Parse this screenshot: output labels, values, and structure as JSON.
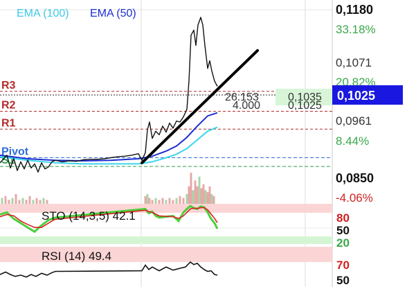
{
  "chart_data": {
    "type": "line",
    "legend": {
      "ema100": "EMA (100)",
      "ema50": "EMA (50)"
    },
    "price_axis": {
      "max_label": "0,1180",
      "max_pct": "33.18%",
      "t1_label": "0,1071",
      "t1_pct": "20.82%",
      "current_label": "0,1025",
      "t2_label": "0,0961",
      "t2_pct": "8.44%",
      "t3_label": "0,0850",
      "t3_pct": "-4.06%"
    },
    "levels": [
      {
        "name": "R3",
        "value": 0.102
      },
      {
        "name": "R2",
        "value": 0.0981
      },
      {
        "name": "R1",
        "value": 0.0946
      },
      {
        "name": "Pivot",
        "value": 0.089
      },
      {
        "name": "S1",
        "value": 0.0873
      }
    ],
    "measure": {
      "top": "26.153",
      "bottom": "4.000",
      "right_top": "0,1035",
      "right_bottom": "0,1025"
    },
    "price_x": [
      0,
      10,
      15,
      20,
      25,
      30,
      35,
      40,
      45,
      50,
      55,
      60,
      65,
      70,
      75,
      80,
      90,
      100,
      110,
      120,
      130,
      140,
      150,
      160,
      170,
      180,
      190,
      200,
      205,
      210,
      213,
      216,
      220,
      225,
      230,
      235,
      240,
      245,
      250,
      255,
      260,
      265,
      270,
      273,
      276,
      280,
      283,
      286,
      290,
      293,
      296,
      300,
      303,
      306,
      310,
      314
    ],
    "price_y": [
      0.088,
      0.0895,
      0.087,
      0.0888,
      0.0865,
      0.0882,
      0.0868,
      0.0885,
      0.087,
      0.0878,
      0.0862,
      0.088,
      0.0868,
      0.0872,
      0.0882,
      0.0885,
      0.0882,
      0.0884,
      0.0883,
      0.0886,
      0.0887,
      0.0887,
      0.0888,
      0.089,
      0.0892,
      0.0893,
      0.0895,
      0.0898,
      0.0885,
      0.09,
      0.0945,
      0.096,
      0.0928,
      0.0942,
      0.0935,
      0.0952,
      0.094,
      0.0958,
      0.0948,
      0.0962,
      0.096,
      0.097,
      0.0985,
      0.104,
      0.113,
      0.114,
      0.111,
      0.115,
      0.1165,
      0.115,
      0.111,
      0.1065,
      0.108,
      0.106,
      0.104,
      0.103
    ],
    "ema50_x": [
      0,
      40,
      80,
      120,
      160,
      200,
      220,
      240,
      255,
      270,
      285,
      300,
      314
    ],
    "ema50_y": [
      0.0895,
      0.0888,
      0.0885,
      0.0884,
      0.0885,
      0.0888,
      0.0893,
      0.0903,
      0.0913,
      0.093,
      0.0952,
      0.0972,
      0.0978
    ],
    "ema100_x": [
      0,
      40,
      80,
      120,
      160,
      200,
      220,
      240,
      255,
      270,
      285,
      300,
      314
    ],
    "ema100_y": [
      0.0892,
      0.0885,
      0.088,
      0.0878,
      0.0878,
      0.0878,
      0.0882,
      0.089,
      0.0897,
      0.0908,
      0.0925,
      0.0942,
      0.095
    ],
    "trendline": {
      "x": [
        205,
        372
      ],
      "y": [
        0.088,
        0.11
      ]
    },
    "volume_x": [
      3,
      8,
      13,
      18,
      23,
      28,
      33,
      38,
      43,
      48,
      53,
      58,
      63,
      68,
      210,
      213,
      216,
      220,
      225,
      230,
      235,
      240,
      245,
      250,
      255,
      260,
      265,
      270,
      273,
      276,
      279,
      282,
      285,
      288,
      291,
      294,
      297,
      300,
      303,
      306,
      309
    ],
    "volume": [
      3,
      4,
      2,
      3,
      5,
      2,
      3,
      2,
      4,
      2,
      3,
      2,
      3,
      2,
      4,
      5,
      3,
      2,
      3,
      2,
      3,
      2,
      3,
      2,
      3,
      4,
      3,
      5,
      9,
      16,
      7,
      12,
      9,
      14,
      8,
      10,
      7,
      6,
      9,
      5,
      4
    ],
    "sto": {
      "label": "STO (14,3,5) 42.1",
      "upper_label": "80",
      "mid_label": "50",
      "lower_label": "20",
      "k_x": [
        0,
        10,
        20,
        30,
        40,
        50,
        60,
        70,
        75,
        80,
        210,
        215,
        220,
        225,
        230,
        240,
        250,
        258,
        265,
        270,
        275,
        280,
        285,
        290,
        295,
        300,
        305,
        310,
        314
      ],
      "k": [
        75,
        80,
        65,
        55,
        45,
        35,
        50,
        62,
        65,
        68,
        88,
        78,
        82,
        72,
        68,
        70,
        72,
        60,
        80,
        88,
        95,
        90,
        88,
        94,
        92,
        80,
        65,
        55,
        42
      ],
      "d_x": [
        0,
        10,
        20,
        30,
        40,
        50,
        60,
        70,
        75,
        80,
        210,
        215,
        220,
        225,
        230,
        240,
        250,
        258,
        265,
        270,
        275,
        280,
        285,
        290,
        295,
        300,
        305,
        310,
        314
      ],
      "d": [
        70,
        75,
        72,
        60,
        52,
        45,
        45,
        55,
        60,
        64,
        85,
        82,
        80,
        76,
        72,
        71,
        70,
        66,
        72,
        80,
        88,
        90,
        89,
        91,
        91,
        86,
        76,
        66,
        56
      ]
    },
    "rsi": {
      "label": "RSI (14) 49.4",
      "upper_label": "70",
      "lower_label": "50",
      "x": [
        0,
        8,
        15,
        22,
        30,
        38,
        45,
        52,
        60,
        68,
        75,
        80,
        205,
        210,
        215,
        220,
        230,
        240,
        250,
        260,
        268,
        275,
        280,
        285,
        290,
        295,
        300,
        305,
        310,
        314
      ],
      "values": [
        50,
        54,
        50,
        47,
        49,
        46,
        50,
        47,
        52,
        49,
        53,
        55,
        56,
        65,
        58,
        62,
        56,
        62,
        57,
        60,
        62,
        70,
        66,
        68,
        62,
        58,
        55,
        56,
        50,
        49
      ]
    }
  }
}
